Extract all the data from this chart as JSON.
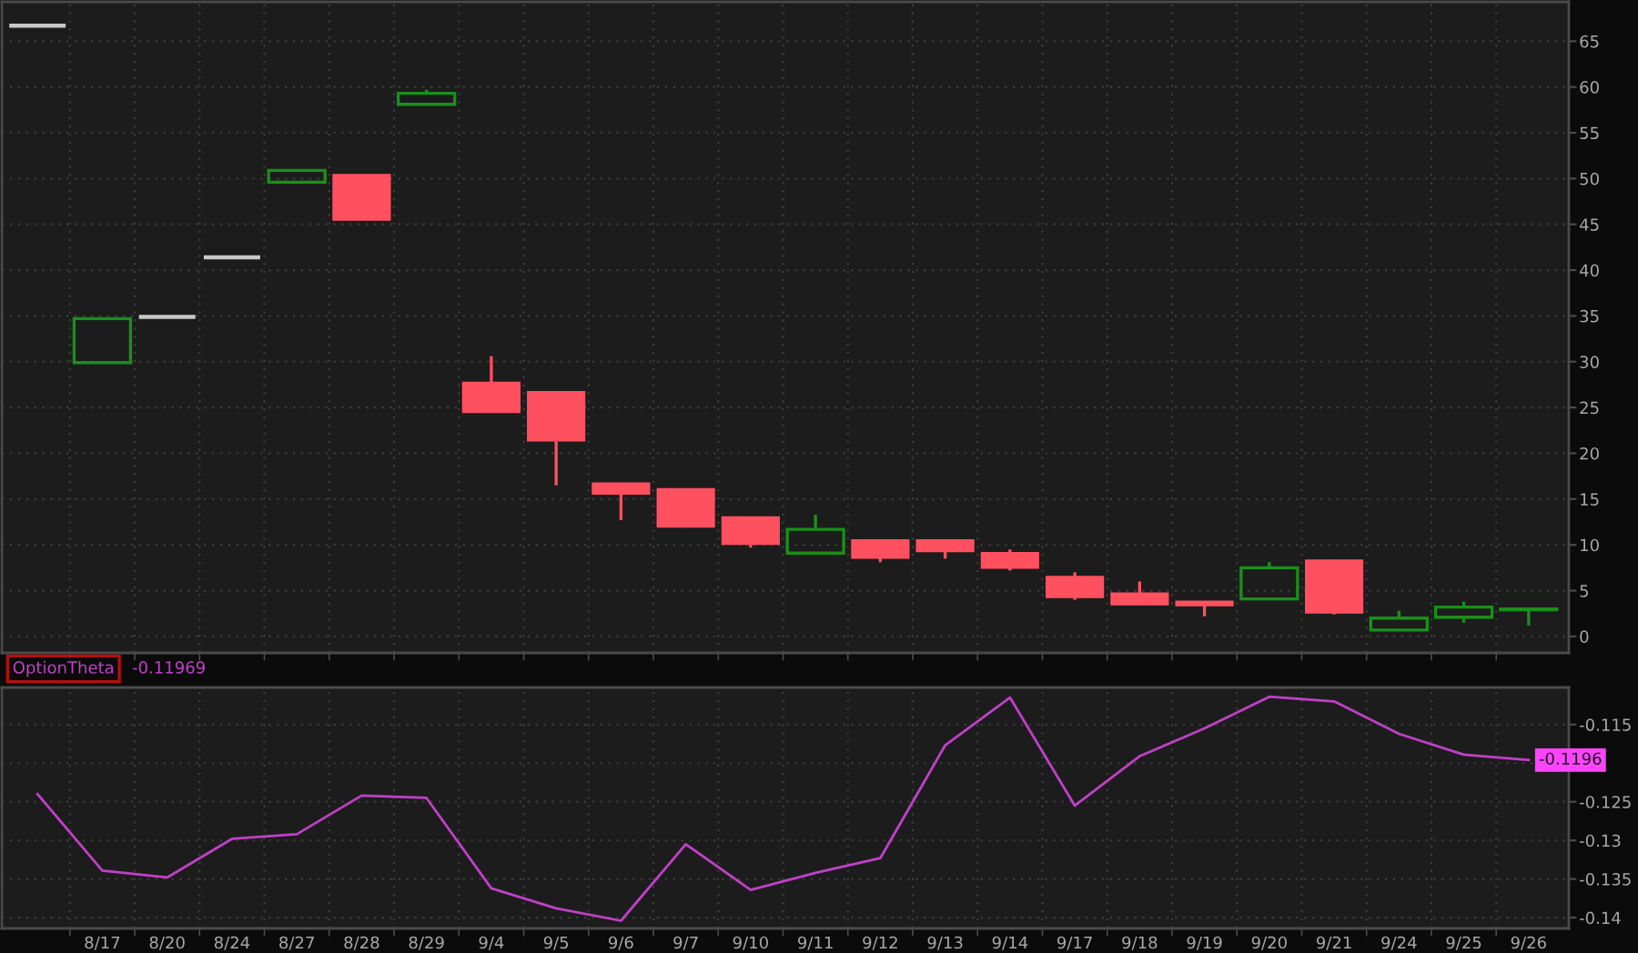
{
  "chart_data": [
    {
      "type": "candlestick",
      "categories": [
        null,
        null,
        null,
        null,
        null,
        null,
        null,
        null,
        null,
        null,
        null,
        null,
        null,
        null,
        null,
        null,
        null,
        null,
        null,
        null,
        null,
        null,
        null,
        null
      ],
      "ohlc": [
        [
          66.7,
          66.7,
          66.7,
          66.7
        ],
        [
          29.9,
          34.7,
          29.9,
          34.7
        ],
        [
          34.9,
          34.9,
          34.9,
          34.9
        ],
        [
          41.4,
          41.4,
          41.4,
          41.4
        ],
        [
          49.6,
          50.9,
          49.6,
          50.9
        ],
        [
          50.4,
          50.4,
          45.5,
          45.5
        ],
        [
          58.1,
          59.7,
          58.1,
          59.3
        ],
        [
          27.7,
          30.6,
          24.5,
          24.5
        ],
        [
          26.7,
          26.7,
          16.5,
          21.4
        ],
        [
          16.7,
          16.7,
          12.7,
          15.6
        ],
        [
          16.1,
          16.1,
          11.9,
          12.0
        ],
        [
          13.0,
          13.0,
          9.7,
          10.1
        ],
        [
          9.1,
          13.3,
          9.1,
          11.7
        ],
        [
          10.5,
          10.5,
          8.1,
          8.6
        ],
        [
          10.5,
          10.5,
          8.5,
          9.3
        ],
        [
          9.1,
          9.5,
          7.2,
          7.5
        ],
        [
          6.5,
          7.0,
          4.0,
          4.3
        ],
        [
          4.7,
          6.0,
          3.5,
          3.5
        ],
        [
          3.8,
          3.8,
          2.2,
          3.4
        ],
        [
          4.1,
          8.1,
          4.1,
          7.5
        ],
        [
          8.3,
          8.4,
          2.4,
          2.6
        ],
        [
          0.7,
          2.8,
          0.7,
          2.0
        ],
        [
          2.1,
          3.8,
          1.5,
          3.2
        ],
        [
          2.9,
          3.0,
          1.2,
          3.0
        ]
      ],
      "colors": [
        "#c8c8c8",
        "#1a8f1a",
        "#c8c8c8",
        "#c8c8c8",
        "#1a8f1a",
        "#ff5060",
        "#1a8f1a",
        "#ff5060",
        "#ff5060",
        "#ff5060",
        "#ff5060",
        "#ff5060",
        "#1a8f1a",
        "#ff5060",
        "#ff5060",
        "#ff5060",
        "#ff5060",
        "#ff5060",
        "#ff5060",
        "#1a8f1a",
        "#ff5060",
        "#1a8f1a",
        "#1a8f1a",
        "#1a8f1a"
      ],
      "ylim": [
        -1.8,
        69.3
      ],
      "yticks": [
        0,
        5,
        10,
        15,
        20,
        25,
        30,
        35,
        40,
        45,
        50,
        55,
        60,
        65
      ],
      "grid": true
    },
    {
      "type": "line",
      "categories": [
        null,
        "8/17",
        "8/20",
        "8/24",
        "8/27",
        "8/28",
        "8/29",
        "9/4",
        "9/5",
        "9/6",
        "9/7",
        "9/10",
        "9/11",
        "9/12",
        "9/13",
        "9/14",
        "9/17",
        "9/18",
        "9/19",
        "9/20",
        "9/21",
        "9/24",
        "9/25",
        "9/26"
      ],
      "series": [
        {
          "name": "OptionTheta",
          "color": "#c040c8",
          "values": [
            -0.124,
            -0.1339,
            -0.1348,
            -0.1298,
            -0.1292,
            -0.1242,
            -0.1245,
            -0.1362,
            -0.1388,
            -0.1404,
            -0.1305,
            -0.1364,
            -0.1342,
            -0.1323,
            -0.1177,
            -0.1115,
            -0.1255,
            -0.1191,
            -0.1155,
            -0.1114,
            -0.112,
            -0.1162,
            -0.1189,
            -0.1196
          ],
          "value_labels": [
            null,
            null,
            null,
            null,
            null,
            null,
            null,
            null,
            null,
            null,
            null,
            null,
            null,
            null,
            null,
            null,
            null,
            null,
            null,
            null,
            null,
            null,
            null,
            "-0.1196"
          ]
        }
      ],
      "ylim": [
        -0.1414,
        -0.1102
      ],
      "yticks": [
        -0.14,
        -0.135,
        -0.13,
        -0.125,
        {
          "value": -0.12,
          "label": null
        },
        -0.115
      ],
      "grid": true,
      "legend": "top left",
      "annotations": [
        "-0.11969"
      ]
    }
  ]
}
